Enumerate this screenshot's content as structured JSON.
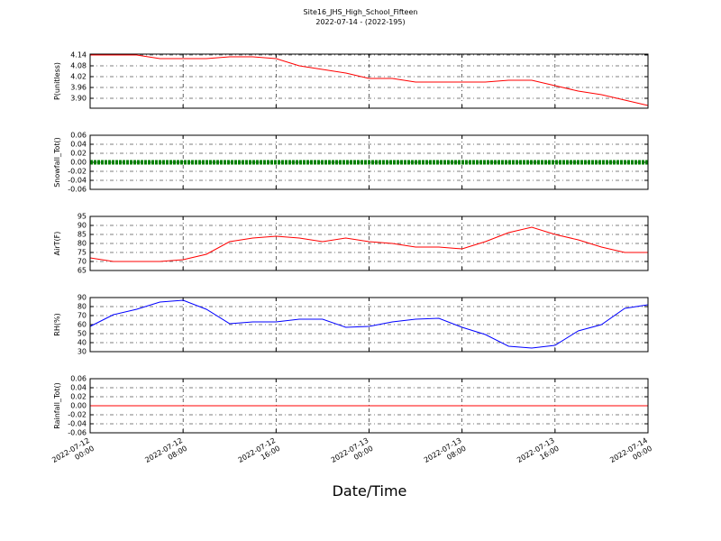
{
  "chart_data": [
    {
      "type": "line",
      "title": "Site16_JHS_High_School_Fifteen",
      "subtitle": "2022-07-14 - (2022-195)",
      "ylabel": "P(unitless)",
      "x": [
        "2022-07-12 00:00",
        "2022-07-12 02:00",
        "2022-07-12 04:00",
        "2022-07-12 06:00",
        "2022-07-12 08:00",
        "2022-07-12 10:00",
        "2022-07-12 12:00",
        "2022-07-12 14:00",
        "2022-07-12 16:00",
        "2022-07-12 18:00",
        "2022-07-12 20:00",
        "2022-07-12 22:00",
        "2022-07-13 00:00",
        "2022-07-13 02:00",
        "2022-07-13 04:00",
        "2022-07-13 06:00",
        "2022-07-13 08:00",
        "2022-07-13 10:00",
        "2022-07-13 12:00",
        "2022-07-13 14:00",
        "2022-07-13 16:00",
        "2022-07-13 18:00",
        "2022-07-13 20:00",
        "2022-07-13 22:00",
        "2022-07-14 00:00"
      ],
      "values": [
        4.14,
        4.14,
        4.14,
        4.12,
        4.12,
        4.12,
        4.13,
        4.13,
        4.12,
        4.08,
        4.06,
        4.04,
        4.01,
        4.01,
        3.99,
        3.99,
        3.99,
        3.99,
        4.0,
        4.0,
        3.97,
        3.94,
        3.92,
        3.89,
        3.86
      ],
      "color": "#ff0000",
      "ylim": [
        3.845,
        4.145
      ],
      "yticks": [
        {
          "value": 3.9,
          "label": "3.90"
        },
        3.96,
        4.02,
        4.08,
        4.14
      ],
      "grid": true
    },
    {
      "type": "scatter",
      "ylabel": "Snowfall_Tot()",
      "x": [
        "2022-07-12 00:00",
        "2022-07-12 02:00",
        "2022-07-12 04:00",
        "2022-07-12 06:00",
        "2022-07-12 08:00",
        "2022-07-12 10:00",
        "2022-07-12 12:00",
        "2022-07-12 14:00",
        "2022-07-12 16:00",
        "2022-07-12 18:00",
        "2022-07-12 20:00",
        "2022-07-12 22:00",
        "2022-07-13 00:00",
        "2022-07-13 02:00",
        "2022-07-13 04:00",
        "2022-07-13 06:00",
        "2022-07-13 08:00",
        "2022-07-13 10:00",
        "2022-07-13 12:00",
        "2022-07-13 14:00",
        "2022-07-13 16:00",
        "2022-07-13 18:00",
        "2022-07-13 20:00",
        "2022-07-13 22:00",
        "2022-07-14 00:00"
      ],
      "values": [
        0,
        0,
        0,
        0,
        0,
        0,
        0,
        0,
        0,
        0,
        0,
        0,
        0,
        0,
        0,
        0,
        0,
        0,
        0,
        0,
        0,
        0,
        0,
        0,
        0
      ],
      "color": "#008000",
      "ylim": [
        -0.06,
        0.06
      ],
      "yticks": [
        -0.06,
        -0.04,
        -0.02,
        {
          "value": 0,
          "label": "0.00"
        },
        0.02,
        0.04,
        0.06
      ],
      "grid": true
    },
    {
      "type": "line",
      "ylabel": "AirT(F)",
      "x": [
        "2022-07-12 00:00",
        "2022-07-12 02:00",
        "2022-07-12 04:00",
        "2022-07-12 06:00",
        "2022-07-12 08:00",
        "2022-07-12 10:00",
        "2022-07-12 12:00",
        "2022-07-12 14:00",
        "2022-07-12 16:00",
        "2022-07-12 18:00",
        "2022-07-12 20:00",
        "2022-07-12 22:00",
        "2022-07-13 00:00",
        "2022-07-13 02:00",
        "2022-07-13 04:00",
        "2022-07-13 06:00",
        "2022-07-13 08:00",
        "2022-07-13 10:00",
        "2022-07-13 12:00",
        "2022-07-13 14:00",
        "2022-07-13 16:00",
        "2022-07-13 18:00",
        "2022-07-13 20:00",
        "2022-07-13 22:00",
        "2022-07-14 00:00"
      ],
      "values": [
        72,
        70,
        70,
        70,
        71,
        74,
        81,
        83,
        84,
        83,
        81,
        83,
        81,
        80,
        78,
        78,
        77,
        81,
        86,
        89,
        85,
        82,
        78,
        75,
        75
      ],
      "color": "#ff0000",
      "ylim": [
        65,
        95
      ],
      "yticks": [
        65,
        70,
        75,
        80,
        85,
        90,
        95
      ],
      "grid": true
    },
    {
      "type": "line",
      "ylabel": "RH(%)",
      "x": [
        "2022-07-12 00:00",
        "2022-07-12 02:00",
        "2022-07-12 04:00",
        "2022-07-12 06:00",
        "2022-07-12 08:00",
        "2022-07-12 10:00",
        "2022-07-12 12:00",
        "2022-07-12 14:00",
        "2022-07-12 16:00",
        "2022-07-12 18:00",
        "2022-07-12 20:00",
        "2022-07-12 22:00",
        "2022-07-13 00:00",
        "2022-07-13 02:00",
        "2022-07-13 04:00",
        "2022-07-13 06:00",
        "2022-07-13 08:00",
        "2022-07-13 10:00",
        "2022-07-13 12:00",
        "2022-07-13 14:00",
        "2022-07-13 16:00",
        "2022-07-13 18:00",
        "2022-07-13 20:00",
        "2022-07-13 22:00",
        "2022-07-14 00:00"
      ],
      "values": [
        58,
        71,
        77,
        85,
        87,
        77,
        61,
        63,
        63,
        66,
        66,
        57,
        58,
        63,
        66,
        67,
        57,
        49,
        36,
        34,
        37,
        53,
        60,
        78,
        82
      ],
      "color": "#0000ff",
      "ylim": [
        30,
        90
      ],
      "yticks": [
        30,
        40,
        50,
        60,
        70,
        80,
        90
      ],
      "grid": true
    },
    {
      "type": "line",
      "ylabel": "Rainfall_Tot()",
      "xlabel": "Date/Time",
      "x": [
        "2022-07-12 00:00",
        "2022-07-12 02:00",
        "2022-07-12 04:00",
        "2022-07-12 06:00",
        "2022-07-12 08:00",
        "2022-07-12 10:00",
        "2022-07-12 12:00",
        "2022-07-12 14:00",
        "2022-07-12 16:00",
        "2022-07-12 18:00",
        "2022-07-12 20:00",
        "2022-07-12 22:00",
        "2022-07-13 00:00",
        "2022-07-13 02:00",
        "2022-07-13 04:00",
        "2022-07-13 06:00",
        "2022-07-13 08:00",
        "2022-07-13 10:00",
        "2022-07-13 12:00",
        "2022-07-13 14:00",
        "2022-07-13 16:00",
        "2022-07-13 18:00",
        "2022-07-13 20:00",
        "2022-07-13 22:00",
        "2022-07-14 00:00"
      ],
      "values": [
        0,
        0,
        0,
        0,
        0,
        0,
        0,
        0,
        0,
        0,
        0,
        0,
        0,
        0,
        0,
        0,
        0,
        0,
        0,
        0,
        0,
        0,
        0,
        0,
        0
      ],
      "color": "#ff0000",
      "ylim": [
        -0.06,
        0.06
      ],
      "yticks": [
        -0.06,
        -0.04,
        -0.02,
        {
          "value": 0,
          "label": "0.00"
        },
        0.02,
        0.04,
        0.06
      ],
      "grid": true,
      "xlim": [
        "2022-07-12 00:00",
        "2022-07-14 00:00"
      ],
      "xticks": [
        "2022-07-12 00:00",
        "2022-07-12 08:00",
        "2022-07-12 16:00",
        "2022-07-13 00:00",
        "2022-07-13 08:00",
        "2022-07-13 16:00",
        "2022-07-14 00:00"
      ]
    }
  ]
}
